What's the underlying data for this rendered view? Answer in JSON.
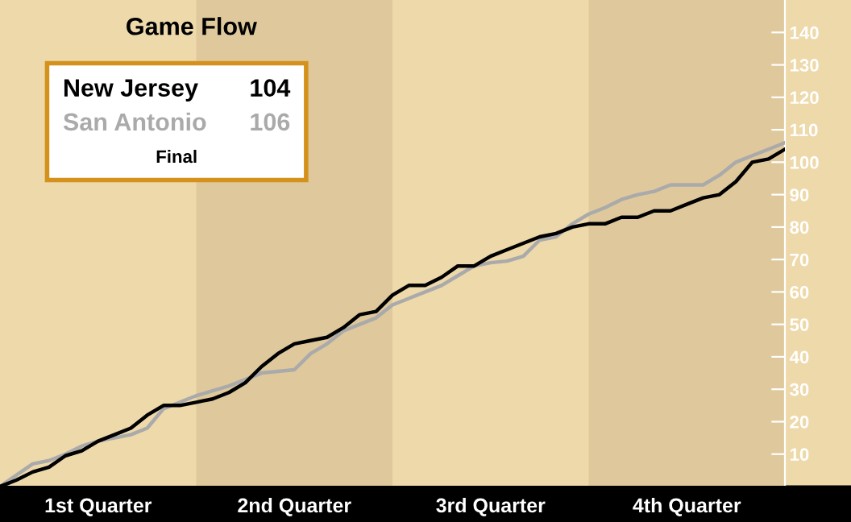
{
  "chart_data": {
    "type": "line",
    "title": "Game Flow",
    "categories": [
      null,
      null,
      null,
      null,
      null,
      null,
      "1st Quarter",
      null,
      null,
      null,
      null,
      null,
      null,
      null,
      null,
      null,
      null,
      null,
      "2nd Quarter",
      null,
      null,
      null,
      null,
      null,
      null,
      null,
      null,
      null,
      null,
      null,
      "3rd Quarter",
      null,
      null,
      null,
      null,
      null,
      null,
      null,
      null,
      null,
      null,
      null,
      "4th Quarter",
      null,
      null,
      null,
      null,
      null,
      null
    ],
    "ylim": [
      0,
      150
    ],
    "yticks": [
      10,
      20,
      30,
      40,
      50,
      60,
      70,
      80,
      90,
      100,
      110,
      120,
      130,
      140
    ],
    "series": [
      {
        "name": "San Antonio",
        "color": "#aaaaaa",
        "values": [
          0,
          3.5,
          7,
          8,
          10,
          12.5,
          14,
          15,
          16,
          18,
          24,
          26,
          28,
          29.5,
          31,
          33,
          35,
          35.5,
          36,
          41,
          44,
          48,
          50,
          52,
          56,
          58,
          60,
          62,
          65,
          68,
          69,
          69.5,
          71,
          76,
          77,
          81,
          84,
          86,
          88.5,
          90,
          91,
          93,
          93,
          93,
          96,
          100,
          102,
          104,
          106
        ]
      },
      {
        "name": "New Jersey",
        "color": "#000000",
        "values": [
          0,
          2,
          4.5,
          6,
          9.5,
          11,
          14,
          16,
          18,
          22,
          25,
          25,
          26,
          27,
          29,
          32,
          37,
          41,
          44,
          45,
          46,
          49,
          53,
          54,
          59,
          62,
          62,
          64.5,
          68,
          68,
          71,
          73,
          75,
          77,
          78,
          80,
          81,
          81,
          83,
          83,
          85,
          85,
          87,
          89,
          90,
          94,
          100,
          101,
          104
        ]
      }
    ],
    "legend": "top left",
    "annotations": [
      "104",
      "106",
      "Final"
    ]
  }
}
